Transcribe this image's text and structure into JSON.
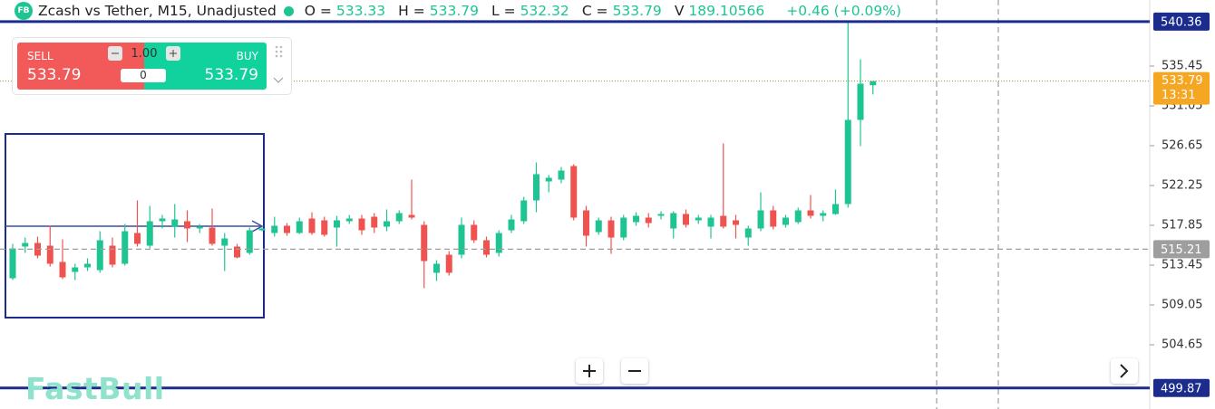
{
  "chart_data": {
    "type": "candlestick",
    "symbol_badge": "FB",
    "title": "Zcash vs Tether, M15, Unadjusted",
    "ohlc_fields": [
      {
        "label": "O =",
        "value": 533.33
      },
      {
        "label": "H =",
        "value": 533.79
      },
      {
        "label": "L =",
        "value": 532.32
      },
      {
        "label": "C =",
        "value": 533.79
      },
      {
        "label": "V",
        "value": 189.10566
      }
    ],
    "change": "+0.46 (+0.09%)",
    "up_color": "#1fc493",
    "down_color": "#ef5350",
    "open": [
      512.0,
      515.5,
      515.9,
      515.6,
      513.8,
      512.7,
      513.2,
      512.9,
      515.6,
      513.6,
      517.0,
      515.6,
      518.3,
      517.7,
      518.3,
      517.5,
      517.6,
      515.6,
      515.5,
      514.8,
      517.3,
      517.0,
      517.8,
      517.0,
      518.6,
      518.4,
      517.6,
      518.3,
      518.6,
      518.8,
      517.7,
      518.3,
      519.0,
      517.9,
      512.6,
      514.6,
      514.6,
      517.9,
      516.2,
      514.8,
      517.3,
      518.3,
      520.6,
      522.7,
      522.9,
      524.4,
      519.5,
      517.1,
      518.4,
      516.5,
      518.2,
      518.7,
      518.9,
      517.5,
      519.1,
      518.4,
      517.7,
      518.9,
      518.4,
      516.5,
      517.5,
      519.5,
      517.9,
      518.2,
      519.5,
      518.9,
      519.1,
      520.2,
      529.5,
      533.33
    ],
    "high": [
      515.8,
      516.5,
      516.6,
      517.8,
      516.3,
      513.6,
      514.2,
      517.2,
      516.5,
      518.0,
      520.6,
      520.0,
      519.0,
      520.2,
      519.5,
      518.0,
      519.7,
      517.0,
      515.8,
      517.6,
      517.6,
      518.8,
      518.1,
      518.7,
      519.3,
      518.8,
      518.9,
      519.0,
      519.0,
      519.2,
      519.6,
      519.5,
      522.9,
      518.3,
      514.0,
      515.0,
      518.7,
      518.4,
      516.6,
      517.3,
      519.0,
      521.0,
      524.8,
      523.4,
      524.3,
      524.6,
      520.0,
      518.7,
      518.8,
      519.0,
      519.3,
      519.2,
      519.4,
      519.4,
      519.6,
      519.0,
      519.0,
      526.9,
      519.0,
      517.8,
      521.5,
      520.0,
      519.0,
      519.8,
      521.2,
      519.5,
      521.8,
      540.4,
      536.2,
      533.79
    ],
    "low": [
      511.8,
      514.8,
      514.2,
      513.3,
      511.9,
      511.8,
      512.8,
      512.6,
      513.2,
      513.4,
      515.5,
      515.3,
      517.5,
      516.5,
      516.0,
      517.0,
      515.6,
      512.8,
      514.2,
      514.6,
      517.2,
      516.6,
      516.7,
      516.9,
      516.8,
      516.6,
      515.5,
      518.0,
      516.8,
      517.0,
      517.2,
      518.0,
      518.5,
      510.9,
      511.7,
      512.3,
      514.2,
      515.9,
      514.3,
      514.4,
      517.0,
      518.0,
      519.3,
      521.5,
      522.5,
      518.4,
      515.5,
      516.8,
      514.7,
      516.2,
      517.8,
      517.6,
      518.5,
      516.4,
      517.6,
      518.0,
      516.4,
      517.5,
      516.4,
      515.6,
      517.2,
      517.4,
      517.6,
      518.0,
      518.6,
      518.3,
      519.0,
      519.8,
      526.6,
      532.32
    ],
    "close": [
      515.3,
      515.9,
      514.5,
      513.6,
      512.1,
      513.2,
      513.6,
      516.2,
      513.5,
      517.2,
      515.8,
      518.3,
      518.6,
      518.5,
      517.5,
      517.7,
      515.8,
      516.4,
      514.3,
      517.3,
      517.5,
      517.8,
      517.0,
      518.3,
      517.0,
      516.8,
      518.4,
      518.6,
      517.3,
      517.6,
      518.3,
      519.2,
      518.7,
      513.9,
      513.6,
      512.6,
      517.9,
      516.2,
      514.6,
      517.0,
      518.5,
      520.6,
      523.5,
      523.1,
      523.9,
      518.7,
      516.7,
      518.4,
      516.5,
      518.7,
      518.9,
      518.1,
      519.1,
      519.2,
      517.9,
      518.7,
      518.7,
      517.7,
      517.9,
      517.5,
      519.5,
      517.7,
      518.7,
      519.5,
      518.9,
      519.2,
      520.2,
      529.5,
      533.5,
      533.79
    ],
    "ylim": [
      497.55,
      542.75
    ],
    "yticks": [
      535.45,
      531.05,
      526.65,
      522.25,
      517.85,
      513.45,
      509.05,
      504.65
    ],
    "hlines": [
      {
        "value": 540.36,
        "style": "solid",
        "color": "#1c2c8c"
      },
      {
        "value": 499.87,
        "style": "solid",
        "color": "#1c2c8c"
      },
      {
        "value": 515.21,
        "style": "dashed",
        "color": "#9e9e9e"
      }
    ],
    "price_label": {
      "value": 533.79,
      "time": "13:31",
      "color": "#f5a623",
      "line_color": "#9a9a2a"
    },
    "watermark": "FastBull",
    "trade": {
      "sell_label": "SELL",
      "sell_price": 533.79,
      "quantity": "1.00",
      "amount": 0,
      "buy_label": "BUY",
      "buy_price": 533.79
    }
  }
}
